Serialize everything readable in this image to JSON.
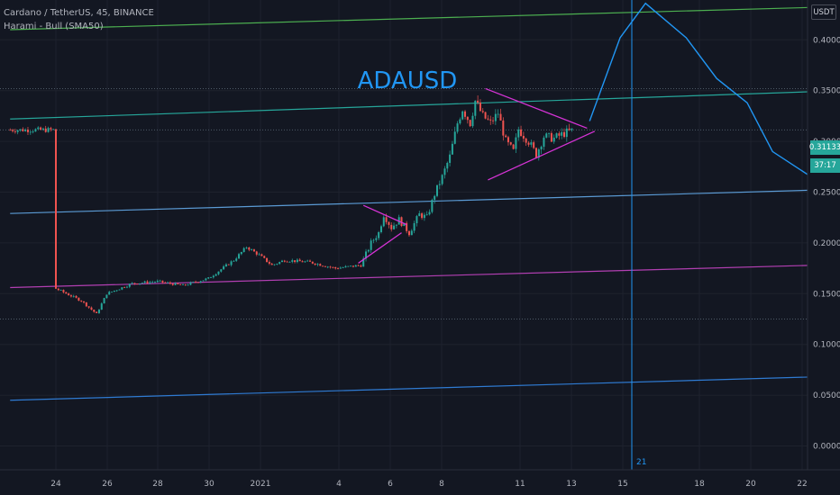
{
  "header": {
    "symbol": "Cardano / TetherUS, 45, BINANCE",
    "indicator": "Harami - Bull (SMA50)"
  },
  "currency_label": "USDT",
  "chart_data": {
    "type": "candlestick",
    "title": "ADAUSD",
    "y_ticks": [
      "0.40000",
      "0.35000",
      "0.30000",
      "0.25000",
      "0.20000",
      "0.15000",
      "0.10000",
      "0.05000",
      "0.00000"
    ],
    "y_tick_values": [
      0.4,
      0.35,
      0.3,
      0.25,
      0.2,
      0.15,
      0.1,
      0.05,
      0.0
    ],
    "ylim": [
      -0.005,
      0.44
    ],
    "x_ticks": [
      "24",
      "26",
      "28",
      "30",
      "2021",
      "4",
      "6",
      "8",
      "11",
      "13",
      "15",
      "18",
      "20",
      "22"
    ],
    "last_price": "0.31133",
    "countdown": "37:17",
    "crosshair_date_label": "21",
    "price_path": [
      {
        "d": 0.0,
        "p": 0.155
      },
      {
        "d": 1.0,
        "p": 0.143
      },
      {
        "d": 1.6,
        "p": 0.13
      },
      {
        "d": 2.0,
        "p": 0.15
      },
      {
        "d": 3.0,
        "p": 0.16
      },
      {
        "d": 4.0,
        "p": 0.162
      },
      {
        "d": 5.0,
        "p": 0.158
      },
      {
        "d": 6.0,
        "p": 0.165
      },
      {
        "d": 7.0,
        "p": 0.183
      },
      {
        "d": 7.5,
        "p": 0.196
      },
      {
        "d": 8.0,
        "p": 0.188
      },
      {
        "d": 8.5,
        "p": 0.178
      },
      {
        "d": 9.0,
        "p": 0.183
      },
      {
        "d": 10.0,
        "p": 0.181
      },
      {
        "d": 11.0,
        "p": 0.175
      },
      {
        "d": 12.0,
        "p": 0.178
      },
      {
        "d": 12.4,
        "p": 0.2
      },
      {
        "d": 12.7,
        "p": 0.21
      },
      {
        "d": 12.9,
        "p": 0.228
      },
      {
        "d": 13.2,
        "p": 0.215
      },
      {
        "d": 13.5,
        "p": 0.223
      },
      {
        "d": 13.9,
        "p": 0.21
      },
      {
        "d": 14.3,
        "p": 0.228
      },
      {
        "d": 14.6,
        "p": 0.225
      },
      {
        "d": 14.9,
        "p": 0.248
      },
      {
        "d": 15.2,
        "p": 0.265
      },
      {
        "d": 15.5,
        "p": 0.285
      },
      {
        "d": 15.8,
        "p": 0.318
      },
      {
        "d": 16.0,
        "p": 0.332
      },
      {
        "d": 16.3,
        "p": 0.318
      },
      {
        "d": 16.5,
        "p": 0.34
      },
      {
        "d": 16.8,
        "p": 0.325
      },
      {
        "d": 17.1,
        "p": 0.318
      },
      {
        "d": 17.4,
        "p": 0.328
      },
      {
        "d": 17.7,
        "p": 0.3
      },
      {
        "d": 18.0,
        "p": 0.29
      },
      {
        "d": 18.2,
        "p": 0.312
      },
      {
        "d": 18.6,
        "p": 0.3
      },
      {
        "d": 18.9,
        "p": 0.287
      },
      {
        "d": 19.2,
        "p": 0.305
      },
      {
        "d": 19.6,
        "p": 0.303
      },
      {
        "d": 20.0,
        "p": 0.308
      },
      {
        "d": 20.4,
        "p": 0.3113
      }
    ],
    "trendlines": [
      {
        "name": "green-channel-top",
        "color": "#4caf50",
        "x0": -1.8,
        "y0": 0.41,
        "x1": 29.8,
        "y1": 0.432
      },
      {
        "name": "teal-channel-upper",
        "color": "#26a69a",
        "x0": -1.8,
        "y0": 0.322,
        "x1": 29.8,
        "y1": 0.349
      },
      {
        "name": "blue-channel-mid",
        "color": "#5b9bd5",
        "x0": -1.8,
        "y0": 0.229,
        "x1": 29.8,
        "y1": 0.252
      },
      {
        "name": "magenta-support",
        "color": "#b23fb2",
        "x0": -1.8,
        "y0": 0.156,
        "x1": 29.8,
        "y1": 0.178
      },
      {
        "name": "blue-channel-low",
        "color": "#2f7bd3",
        "x0": -1.8,
        "y0": 0.045,
        "x1": 29.8,
        "y1": 0.068
      }
    ],
    "triangle_lines": [
      {
        "x0": 12.1,
        "y0": 0.237,
        "x1": 13.8,
        "y1": 0.218
      },
      {
        "x0": 11.9,
        "y0": 0.18,
        "x1": 13.6,
        "y1": 0.21
      },
      {
        "x0": 16.9,
        "y0": 0.352,
        "x1": 20.9,
        "y1": 0.313
      },
      {
        "x0": 17.0,
        "y0": 0.262,
        "x1": 21.2,
        "y1": 0.31
      }
    ],
    "projection_path": [
      {
        "x": 21.0,
        "y": 0.32
      },
      {
        "x": 22.2,
        "y": 0.402
      },
      {
        "x": 23.2,
        "y": 0.436
      },
      {
        "x": 24.8,
        "y": 0.402
      },
      {
        "x": 26.0,
        "y": 0.362
      },
      {
        "x": 27.2,
        "y": 0.338
      },
      {
        "x": 28.2,
        "y": 0.29
      },
      {
        "x": 29.6,
        "y": 0.267
      },
      {
        "x": 30.7,
        "y": 0.43
      }
    ],
    "dotted_levels": [
      0.352,
      0.3113,
      0.125
    ]
  },
  "colors": {
    "background": "#131722",
    "grid": "#1e222d",
    "up_candle": "#26a69a",
    "down_candle": "#ef5350",
    "projection": "#2196f3",
    "triangle": "#d633d6",
    "title": "#2196f3",
    "crosshair": "#2196f3"
  }
}
